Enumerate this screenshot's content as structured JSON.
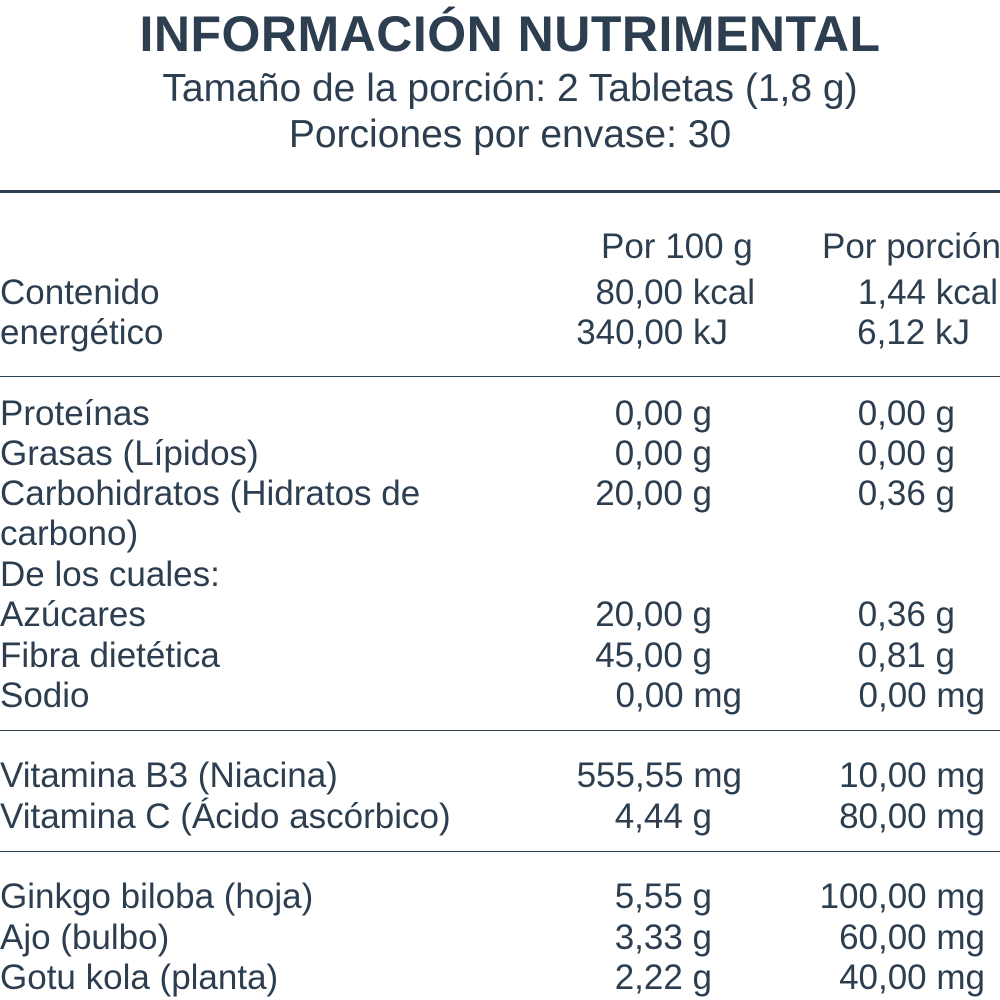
{
  "header": {
    "title": "INFORMACIÓN NUTRIMENTAL",
    "serving_size": "Tamaño de la porción: 2 Tabletas (1,8 g)",
    "servings_per_container": "Porciones por envase: 30"
  },
  "columns": {
    "per_100g": "Por 100 g",
    "per_serving": "Por porción"
  },
  "energy": {
    "label_line1": "Contenido",
    "label_line2": "energético",
    "kcal_100": "80,00 kcal",
    "kcal_por": "1,44 kcal",
    "kj_100": "340,00 kJ",
    "kj_por": "6,12 kJ"
  },
  "nutrients": [
    {
      "label": "Proteínas",
      "per_100g": "0,00 g",
      "per_serving": "0,00 g"
    },
    {
      "label": "Grasas (Lípidos)",
      "per_100g": "0,00 g",
      "per_serving": "0,00 g"
    },
    {
      "label": "Carbohidratos (Hidratos de",
      "per_100g": "20,00 g",
      "per_serving": "0,36 g"
    },
    {
      "label": "carbono)",
      "per_100g": "",
      "per_serving": ""
    },
    {
      "label": "De los cuales:",
      "per_100g": "",
      "per_serving": ""
    },
    {
      "label": "Azúcares",
      "per_100g": "20,00 g",
      "per_serving": "0,36 g"
    },
    {
      "label": "Fibra dietética",
      "per_100g": "45,00 g",
      "per_serving": "0,81 g"
    },
    {
      "label": "Sodio",
      "per_100g": "0,00 mg",
      "per_serving": "0,00 mg"
    }
  ],
  "vitamins": [
    {
      "label": "Vitamina B3 (Niacina)",
      "per_100g": "555,55 mg",
      "per_serving": "10,00 mg"
    },
    {
      "label": "Vitamina C (Ácido ascórbico)",
      "per_100g": "4,44 g",
      "per_serving": "80,00 mg"
    }
  ],
  "botanicals": [
    {
      "label": "Ginkgo biloba (hoja)",
      "per_100g": "5,55 g",
      "per_serving": "100,00 mg"
    },
    {
      "label": "Ajo (bulbo)",
      "per_100g": "3,33 g",
      "per_serving": "60,00 mg"
    },
    {
      "label": "Gotu kola (planta)",
      "per_100g": "2,22 g",
      "per_serving": "40,00 mg"
    }
  ],
  "colors": {
    "text": "#2c3e4f",
    "background": "#ffffff"
  }
}
